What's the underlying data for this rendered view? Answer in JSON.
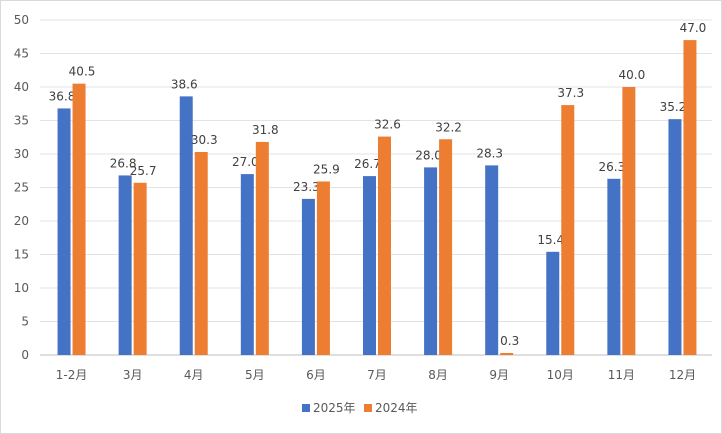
{
  "chart_data": {
    "type": "bar",
    "title": "",
    "xlabel": "",
    "ylabel": "",
    "ylim": [
      0,
      50
    ],
    "yticks": [
      0,
      5,
      10,
      15,
      20,
      25,
      30,
      35,
      40,
      45,
      50
    ],
    "grid": true,
    "legend_position": "bottom",
    "categories": [
      "1-2月",
      "3月",
      "4月",
      "5月",
      "6月",
      "7月",
      "8月",
      "9月",
      "10月",
      "11月",
      "12月"
    ],
    "series": [
      {
        "name": "2025年",
        "color": "#4472c4",
        "values": [
          36.8,
          26.8,
          38.6,
          27.0,
          23.3,
          26.7,
          28.0,
          28.3,
          15.4,
          26.3,
          35.2
        ],
        "labels": [
          "36.8",
          "26.8",
          "38.6",
          "27.0",
          "23.3",
          "26.7",
          "28.0",
          "28.3",
          "15.4",
          "26.3",
          "35.2"
        ]
      },
      {
        "name": "2024年",
        "color": "#ed7d31",
        "values": [
          40.5,
          25.7,
          30.3,
          31.8,
          25.9,
          32.6,
          32.2,
          0.3,
          37.3,
          40.0,
          47.0
        ],
        "labels": [
          "40.5",
          "25.7",
          "30.3",
          "31.8",
          "25.9",
          "32.6",
          "32.2",
          "0.3",
          "37.3",
          "40.0",
          "47.0"
        ]
      }
    ]
  }
}
